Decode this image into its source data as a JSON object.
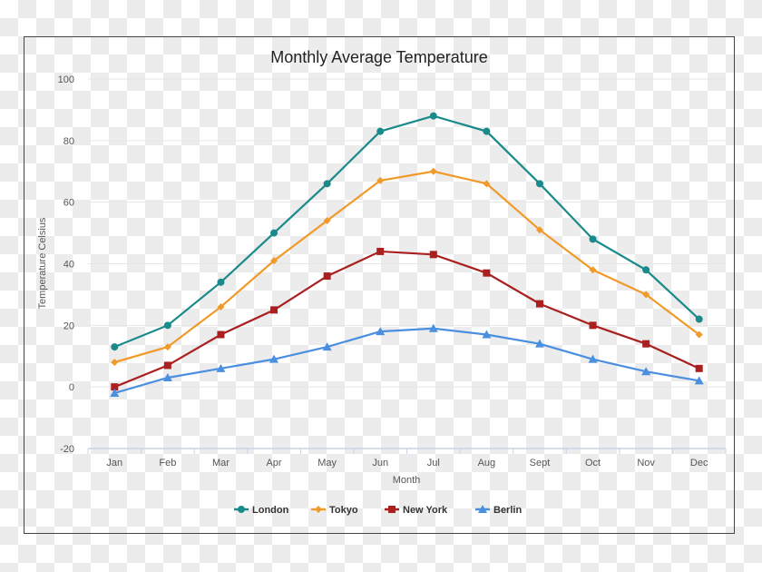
{
  "chart_data": {
    "type": "line",
    "title": "Monthly Average Temperature",
    "xlabel": "Month",
    "ylabel": "Temperature Celsius",
    "ylim": [
      -20,
      100
    ],
    "yticks": [
      -20,
      0,
      20,
      40,
      60,
      80,
      100
    ],
    "grid": true,
    "legend_position": "bottom",
    "categories": [
      "Jan",
      "Feb",
      "Mar",
      "Apr",
      "May",
      "Jun",
      "Jul",
      "Aug",
      "Sept",
      "Oct",
      "Nov",
      "Dec"
    ],
    "series": [
      {
        "name": "London",
        "marker": "circle",
        "color": "#1a8a8a",
        "values": [
          13,
          20,
          34,
          50,
          66,
          83,
          88,
          83,
          66,
          48,
          38,
          22
        ]
      },
      {
        "name": "Tokyo",
        "marker": "diamond",
        "color": "#f09a2a",
        "values": [
          8,
          13,
          26,
          41,
          54,
          67,
          70,
          66,
          51,
          38,
          30,
          17
        ]
      },
      {
        "name": "New York",
        "marker": "square",
        "color": "#aa2020",
        "values": [
          0,
          7,
          17,
          25,
          36,
          44,
          43,
          37,
          27,
          20,
          14,
          6
        ]
      },
      {
        "name": "Berlin",
        "marker": "triangle",
        "color": "#4a8fe0",
        "values": [
          -2,
          3,
          6,
          9,
          13,
          18,
          19,
          17,
          14,
          9,
          5,
          2
        ]
      }
    ]
  }
}
